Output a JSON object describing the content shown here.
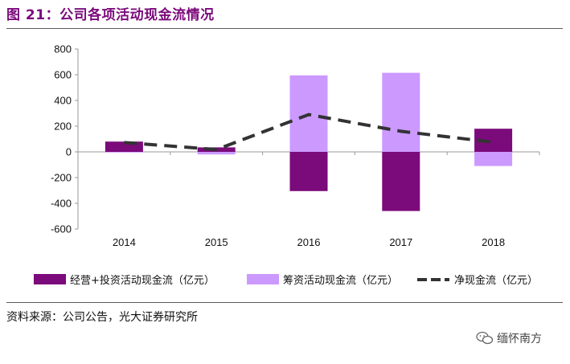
{
  "header": {
    "title": "图 21：公司各项活动现金流情况"
  },
  "footer": {
    "source": "资料来源：公司公告，光大证券研究所",
    "watermark_text": "缅怀南方",
    "watermark_icon": "wechat-icon"
  },
  "colors": {
    "title": "#7B0A7B",
    "op_inv": "#7B0A7B",
    "fin": "#CC99FF",
    "net": "#333333"
  },
  "chart_data": {
    "type": "bar",
    "categories": [
      "2014",
      "2015",
      "2016",
      "2017",
      "2018"
    ],
    "series": [
      {
        "name": "经营+投资活动现金流（亿元）",
        "kind": "bar",
        "values": [
          80,
          35,
          -305,
          -460,
          180
        ]
      },
      {
        "name": "筹资活动现金流（亿元）",
        "kind": "bar",
        "values": [
          -5,
          -20,
          595,
          615,
          -110
        ]
      },
      {
        "name": "净现金流（亿元）",
        "kind": "line",
        "style": "dashed",
        "values": [
          73,
          18,
          290,
          160,
          75
        ]
      }
    ],
    "ylim": [
      -600,
      800
    ],
    "yticks": [
      "800",
      "600",
      "400",
      "200",
      "0",
      "-200",
      "-400",
      "-600"
    ],
    "grid": false,
    "legend_position": "bottom"
  }
}
